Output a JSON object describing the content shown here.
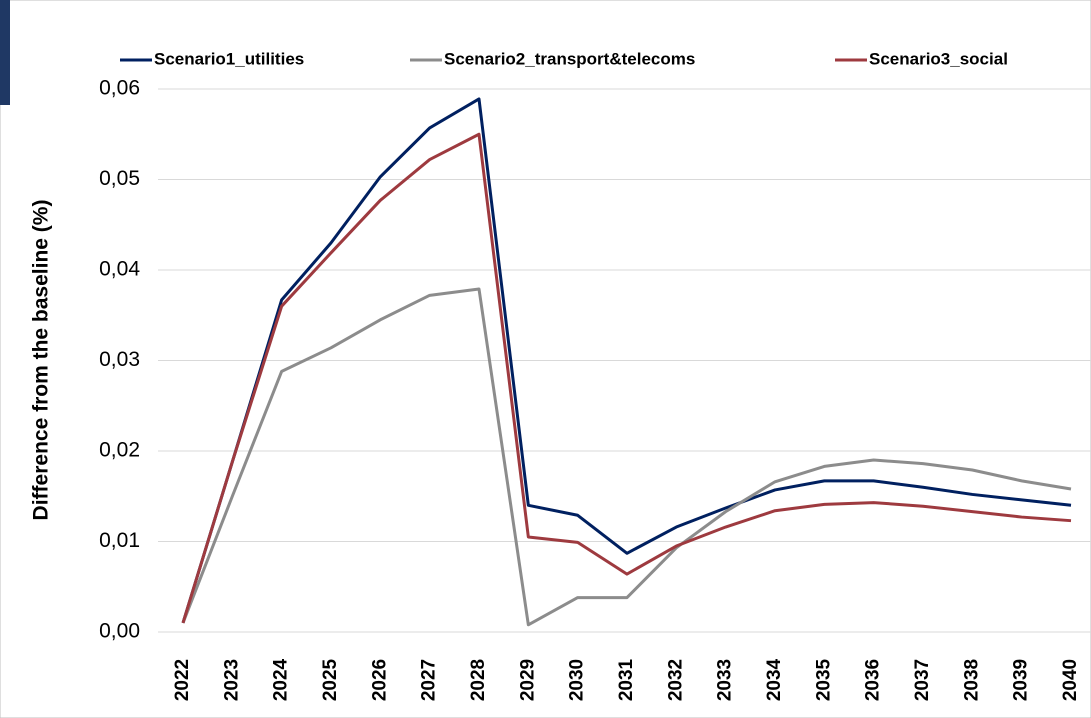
{
  "chart_data": {
    "type": "line",
    "y_label": "Difference from the baseline (%)",
    "categories": [
      "2022",
      "2023",
      "2024",
      "2025",
      "2026",
      "2027",
      "2028",
      "2029",
      "2030",
      "2031",
      "2032",
      "2033",
      "2034",
      "2035",
      "2036",
      "2037",
      "2038",
      "2039",
      "2040"
    ],
    "series": [
      {
        "name": "Scenario1_utilities",
        "color": "#002060",
        "values": [
          0.001,
          0.0188,
          0.0367,
          0.043,
          0.0503,
          0.0557,
          0.0589,
          0.014,
          0.0129,
          0.0087,
          0.0116,
          0.0137,
          0.0157,
          0.0167,
          0.0167,
          0.016,
          0.0152,
          0.0146,
          0.014
        ]
      },
      {
        "name": "Scenario2_transport&telecoms",
        "color": "#8c8c8c",
        "values": [
          0.001,
          0.015,
          0.0288,
          0.0314,
          0.0345,
          0.0372,
          0.0379,
          0.0008,
          0.0038,
          0.0038,
          0.0093,
          0.0133,
          0.0166,
          0.0183,
          0.019,
          0.0186,
          0.0179,
          0.0167,
          0.0158
        ]
      },
      {
        "name": "Scenario3_social",
        "color": "#9e3a3f",
        "values": [
          0.001,
          0.0188,
          0.036,
          0.0419,
          0.0477,
          0.0522,
          0.055,
          0.0105,
          0.0099,
          0.0064,
          0.0095,
          0.0116,
          0.0134,
          0.0141,
          0.0143,
          0.0139,
          0.0133,
          0.0127,
          0.0123
        ]
      }
    ],
    "ylim": [
      0,
      0.06
    ],
    "yticks": [
      {
        "value": 0,
        "label": "0,00"
      },
      {
        "value": 0.01,
        "label": "0,01"
      },
      {
        "value": 0.02,
        "label": "0,02"
      },
      {
        "value": 0.03,
        "label": "0,03"
      },
      {
        "value": 0.04,
        "label": "0,04"
      },
      {
        "value": 0.05,
        "label": "0,05"
      },
      {
        "value": 0.06,
        "label": "0,06"
      }
    ],
    "grid": true,
    "legend": "top"
  }
}
